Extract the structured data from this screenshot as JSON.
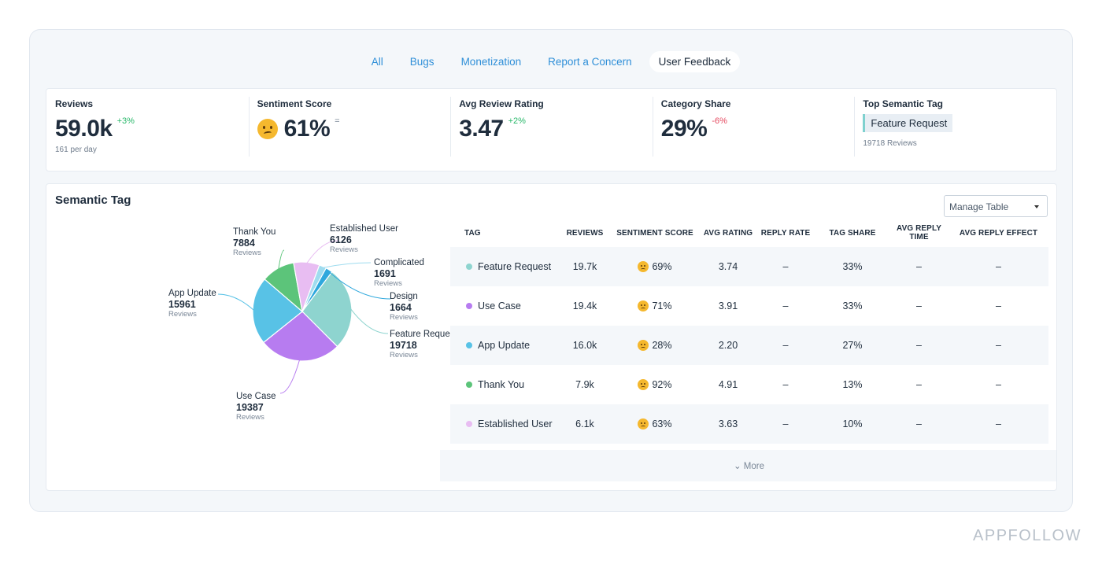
{
  "tabs": [
    {
      "label": "All",
      "active": false
    },
    {
      "label": "Bugs",
      "active": false
    },
    {
      "label": "Monetization",
      "active": false
    },
    {
      "label": "Report a Concern",
      "active": false
    },
    {
      "label": "User Feedback",
      "active": true
    }
  ],
  "kpis": {
    "reviews": {
      "label": "Reviews",
      "value": "59.0k",
      "delta": "+3%",
      "sub": "161 per day"
    },
    "sentiment": {
      "label": "Sentiment Score",
      "value": "61%",
      "delta": "=",
      "emoji": "confused-face-icon"
    },
    "rating": {
      "label": "Avg Review Rating",
      "value": "3.47",
      "delta": "+2%"
    },
    "share": {
      "label": "Category Share",
      "value": "29%",
      "delta": "-6%"
    },
    "top_tag": {
      "label": "Top Semantic Tag",
      "tag": "Feature Request",
      "sub": "19718 Reviews"
    }
  },
  "panel": {
    "title": "Semantic Tag",
    "manage_label": "Manage Table",
    "more_label": "⌄ More"
  },
  "chart_data": {
    "type": "pie",
    "unit_label": "Reviews",
    "slices": [
      {
        "name": "Feature Request",
        "label": "Feature Reques",
        "value": 19718,
        "color": "#8ed4cf"
      },
      {
        "name": "Use Case",
        "value": 19387,
        "color": "#b77cf0"
      },
      {
        "name": "App Update",
        "value": 15961,
        "color": "#58c2e6"
      },
      {
        "name": "Thank You",
        "value": 7884,
        "color": "#5cc47a"
      },
      {
        "name": "Established User",
        "value": 6126,
        "color": "#e8bdf2"
      },
      {
        "name": "Complicated",
        "value": 1691,
        "color": "#9fdcef"
      },
      {
        "name": "Design",
        "value": 1664,
        "color": "#2fa8dd"
      }
    ]
  },
  "table": {
    "headers": [
      "TAG",
      "REVIEWS",
      "SENTIMENT SCORE",
      "AVG RATING",
      "REPLY RATE",
      "TAG SHARE",
      "AVG REPLY TIME",
      "AVG REPLY EFFECT"
    ],
    "rows": [
      {
        "tag": "Feature Request",
        "color": "#8ed4cf",
        "reviews": "19.7k",
        "sentiment": "69%",
        "rating": "3.74",
        "reply_rate": "–",
        "share": "33%",
        "reply_time": "–",
        "reply_effect": "–"
      },
      {
        "tag": "Use Case",
        "color": "#b77cf0",
        "reviews": "19.4k",
        "sentiment": "71%",
        "rating": "3.91",
        "reply_rate": "–",
        "share": "33%",
        "reply_time": "–",
        "reply_effect": "–"
      },
      {
        "tag": "App Update",
        "color": "#58c2e6",
        "reviews": "16.0k",
        "sentiment": "28%",
        "rating": "2.20",
        "reply_rate": "–",
        "share": "27%",
        "reply_time": "–",
        "reply_effect": "–"
      },
      {
        "tag": "Thank You",
        "color": "#5cc47a",
        "reviews": "7.9k",
        "sentiment": "92%",
        "rating": "4.91",
        "reply_rate": "–",
        "share": "13%",
        "reply_time": "–",
        "reply_effect": "–"
      },
      {
        "tag": "Established User",
        "color": "#e8bdf2",
        "reviews": "6.1k",
        "sentiment": "63%",
        "rating": "3.63",
        "reply_rate": "–",
        "share": "10%",
        "reply_time": "–",
        "reply_effect": "–"
      }
    ]
  },
  "brand": "APPFOLLOW"
}
